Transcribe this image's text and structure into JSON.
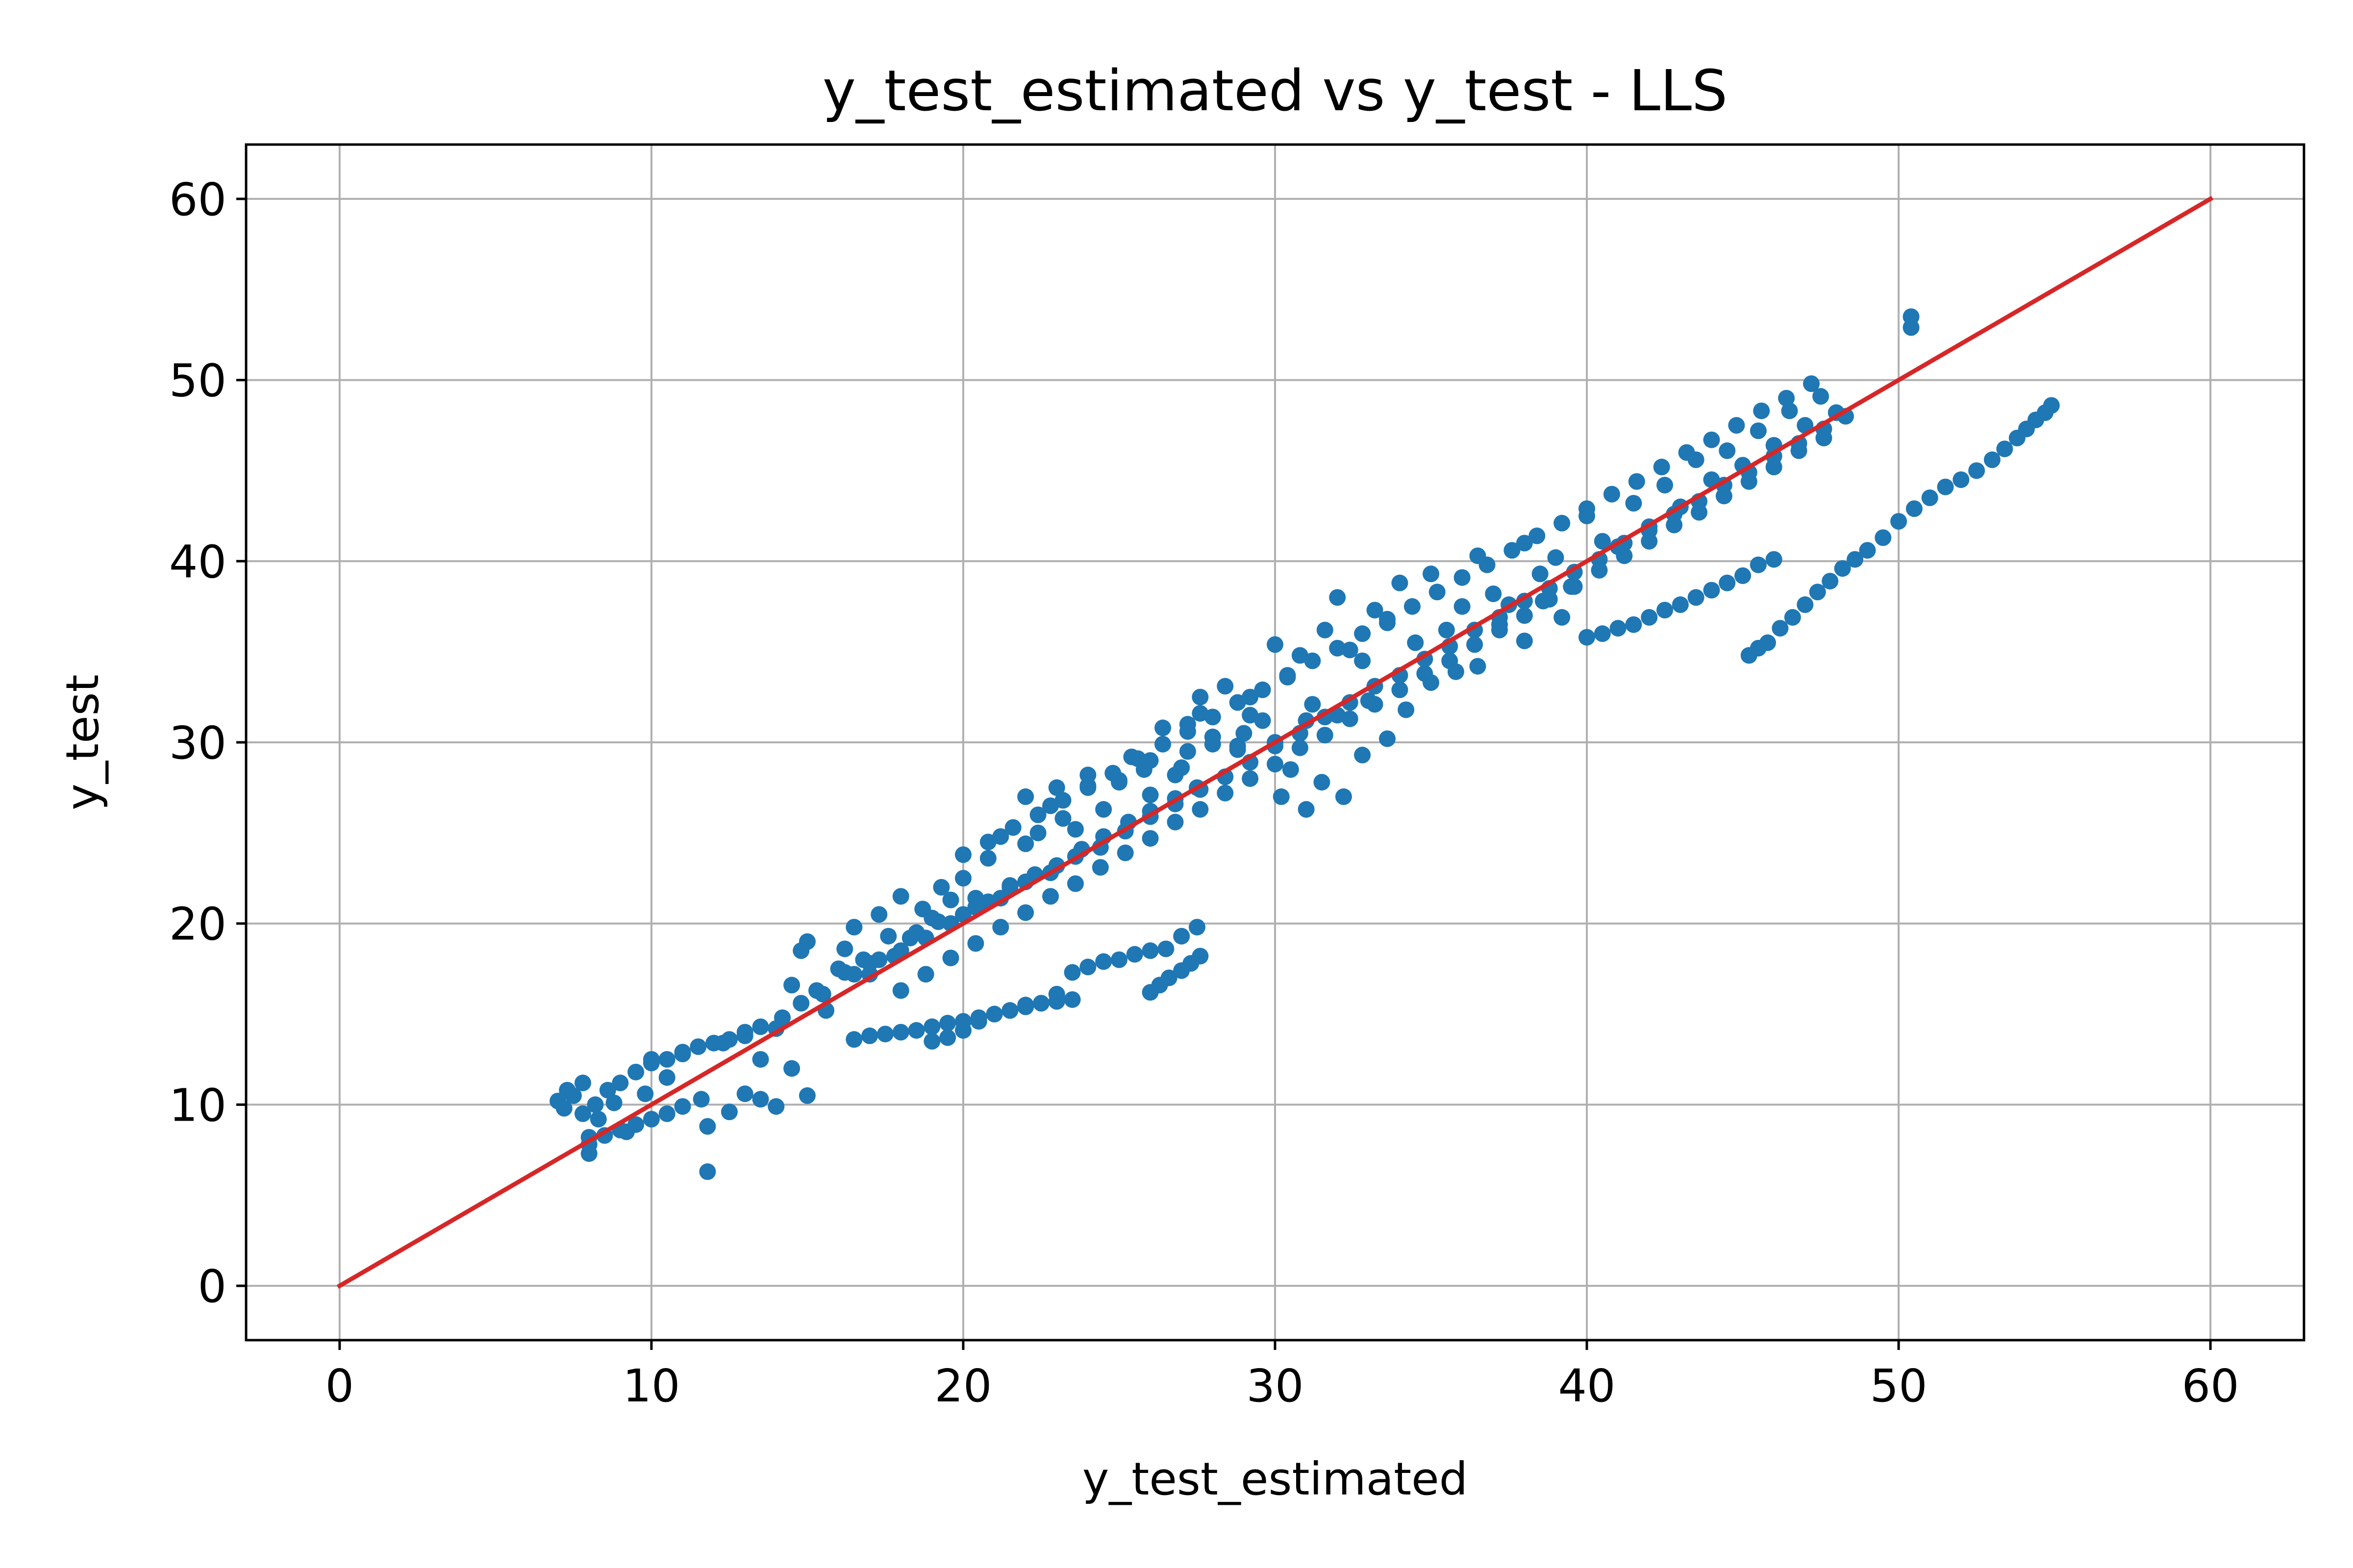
{
  "chart_data": {
    "type": "scatter",
    "title": "y_test_estimated vs y_test - LLS",
    "xlabel": "y_test_estimated",
    "ylabel": "y_test",
    "xlim": [
      -3,
      63
    ],
    "ylim": [
      -3,
      63
    ],
    "xticks": [
      "0",
      "10",
      "20",
      "30",
      "40",
      "50",
      "60"
    ],
    "yticks": [
      "0",
      "10",
      "20",
      "30",
      "40",
      "50",
      "60"
    ],
    "grid": true,
    "colors": {
      "points": "#1f77b4",
      "line": "#d62728",
      "grid": "#b0b0b0"
    },
    "reference_line": {
      "x": [
        0,
        60
      ],
      "y": [
        0,
        60
      ]
    },
    "series": [
      {
        "marker": "dot",
        "x": [
          7.0,
          7.3,
          7.8,
          8.0,
          8.0,
          8.3,
          8.8,
          9.2,
          9.8,
          10.0,
          10.5,
          11.0,
          11.8,
          11.6,
          12.3,
          13.0,
          13.5,
          14.2,
          14.5,
          14.8,
          15.0,
          15.3,
          15.6,
          16.0,
          16.2,
          16.5,
          16.8,
          17.0,
          17.3,
          17.6,
          18.0,
          18.3,
          18.7,
          19.0,
          19.3,
          19.6,
          20.0,
          20.4,
          20.8,
          21.2,
          21.5,
          22.0,
          22.4,
          22.8,
          23.2,
          23.6,
          24.0,
          24.5,
          25.0,
          25.4,
          25.8,
          26.0,
          26.4,
          26.8,
          27.2,
          27.6,
          28.0,
          28.4,
          28.8,
          29.2,
          29.6,
          30.0,
          30.4,
          30.8,
          31.2,
          31.6,
          32.0,
          32.4,
          32.8,
          33.2,
          33.6,
          34.0,
          34.5,
          35.0,
          35.5,
          36.0,
          36.5,
          37.0,
          37.5,
          38.0,
          38.5,
          39.0,
          39.5,
          40.0,
          40.5,
          41.0,
          41.5,
          42.0,
          42.5,
          43.0,
          43.5,
          44.0,
          44.5,
          45.0,
          45.5,
          46.0,
          46.5,
          47.0,
          47.5,
          48.0,
          14.0,
          14.8,
          15.5,
          16.2,
          17.0,
          17.8,
          18.5,
          19.2,
          20.0,
          20.8,
          21.5,
          22.3,
          23.0,
          23.8,
          24.5,
          25.3,
          26.0,
          26.8,
          27.5,
          16.5,
          17.3,
          18.0,
          18.8,
          19.6,
          20.4,
          21.2,
          22.0,
          22.8,
          23.6,
          24.4,
          25.2,
          26.0,
          26.8,
          27.6,
          28.4,
          29.2,
          30.0,
          30.8,
          31.6,
          32.4,
          33.2,
          34.0,
          34.8,
          35.6,
          36.4,
          37.2,
          38.0,
          38.8,
          39.6,
          40.4,
          41.2,
          42.0,
          42.8,
          43.6,
          44.4,
          45.2,
          46.0,
          46.8,
          47.6,
          48.3,
          18.0,
          18.8,
          19.6,
          20.4,
          21.2,
          22.0,
          22.8,
          23.6,
          24.4,
          25.2,
          26.0,
          26.8,
          27.6,
          28.4,
          29.2,
          30.0,
          30.8,
          31.6,
          32.4,
          33.2,
          34.0,
          34.8,
          35.6,
          36.4,
          37.2,
          38.0,
          38.8,
          39.6,
          40.4,
          41.2,
          42.0,
          42.8,
          43.6,
          44.4,
          45.2,
          46.0,
          46.8,
          47.6,
          20.0,
          20.8,
          21.6,
          22.4,
          23.2,
          24.0,
          24.8,
          25.6,
          26.4,
          27.2,
          28.0,
          28.8,
          29.6,
          30.4,
          31.2,
          32.0,
          32.8,
          33.6,
          34.4,
          35.2,
          36.0,
          36.8,
          37.6,
          38.4,
          39.2,
          40.0,
          40.8,
          41.6,
          42.4,
          43.2,
          44.0,
          44.8,
          45.6,
          46.4,
          47.2,
          48.0,
          19.0,
          19.5,
          20.0,
          20.5,
          21.0,
          21.5,
          22.0,
          22.5,
          23.0,
          23.5,
          24.0,
          24.5,
          25.0,
          25.5,
          26.0,
          26.5,
          27.0,
          27.5,
          16.5,
          17.0,
          17.5,
          18.0,
          18.5,
          19.0,
          19.5,
          20.0,
          20.5,
          21.0,
          21.5,
          22.0,
          22.5,
          23.0,
          23.5,
          26.0,
          26.3,
          26.6,
          27.0,
          27.3,
          27.6,
          22.0,
          23.0,
          24.0,
          25.0,
          26.0,
          27.0,
          28.0,
          29.0,
          30.0,
          31.0,
          32.0,
          33.0,
          40.0,
          40.5,
          41.0,
          41.5,
          42.0,
          42.5,
          43.0,
          43.5,
          44.0,
          44.5,
          45.0,
          45.5,
          46.0,
          45.2,
          45.5,
          45.8,
          46.2,
          46.6,
          47.0,
          47.4,
          47.8,
          48.2,
          48.6,
          49.0,
          49.5,
          50.0,
          50.5,
          51.0,
          51.5,
          52.0,
          52.5,
          53.0,
          53.4,
          53.8,
          54.1,
          54.4,
          54.7,
          54.9,
          50.4,
          50.4,
          27.2,
          27.6,
          28.8,
          29.2,
          30.5,
          30.2,
          31.0,
          31.5,
          32.2,
          32.8,
          33.6,
          34.2,
          35.0,
          35.8,
          36.5,
          37.2,
          38.0,
          38.6,
          39.2,
          8.0,
          8.5,
          9.0,
          9.5,
          10.0,
          10.5,
          11.0,
          11.8,
          12.5,
          13.0,
          13.5,
          14.0,
          14.5,
          15.0,
          7.2,
          7.5,
          7.8,
          8.2,
          8.6,
          9.0,
          9.5,
          10.0,
          10.5,
          11.0,
          11.5,
          12.0,
          12.5,
          13.0,
          13.5
        ],
        "y": [
          10.2,
          10.8,
          9.5,
          7.3,
          8.2,
          9.2,
          10.1,
          8.5,
          10.6,
          12.5,
          11.5,
          12.8,
          6.3,
          10.3,
          13.4,
          13.8,
          12.5,
          14.8,
          16.6,
          18.5,
          19.0,
          16.3,
          15.2,
          17.5,
          18.6,
          19.8,
          18.0,
          17.2,
          20.5,
          19.3,
          21.5,
          19.2,
          20.8,
          20.3,
          22.0,
          21.3,
          22.5,
          21.4,
          23.6,
          24.8,
          22.1,
          24.4,
          25.0,
          26.5,
          25.8,
          25.2,
          27.5,
          26.3,
          27.8,
          29.2,
          28.5,
          27.1,
          30.8,
          28.2,
          29.5,
          31.6,
          30.3,
          33.1,
          29.6,
          32.5,
          31.2,
          35.4,
          33.6,
          34.8,
          32.1,
          36.2,
          38.0,
          35.1,
          34.5,
          37.3,
          36.6,
          38.8,
          35.5,
          39.3,
          36.2,
          37.5,
          40.3,
          38.2,
          37.6,
          41.0,
          39.3,
          40.2,
          38.6,
          42.5,
          41.1,
          40.8,
          43.2,
          41.9,
          44.2,
          43.0,
          45.6,
          44.5,
          46.1,
          45.3,
          47.2,
          46.4,
          48.3,
          47.5,
          49.1,
          48.2,
          14.2,
          15.6,
          16.1,
          17.3,
          17.8,
          18.2,
          19.5,
          20.1,
          20.5,
          21.2,
          22.0,
          22.7,
          23.2,
          24.1,
          24.8,
          25.6,
          26.2,
          26.9,
          27.5,
          17.2,
          18.0,
          18.5,
          19.2,
          20.0,
          20.9,
          21.4,
          22.3,
          22.8,
          23.7,
          24.2,
          25.1,
          25.9,
          26.6,
          27.4,
          28.1,
          28.9,
          29.8,
          30.5,
          31.4,
          32.2,
          33.1,
          33.7,
          34.6,
          35.3,
          36.2,
          36.9,
          37.8,
          38.5,
          39.4,
          40.1,
          41.0,
          41.7,
          42.6,
          43.3,
          44.2,
          44.9,
          45.8,
          46.5,
          47.3,
          48.0,
          16.3,
          17.2,
          18.1,
          18.9,
          19.8,
          20.6,
          21.5,
          22.2,
          23.1,
          23.9,
          24.7,
          25.6,
          26.3,
          27.2,
          28.0,
          28.8,
          29.7,
          30.4,
          31.3,
          32.1,
          32.9,
          33.8,
          34.5,
          35.4,
          36.2,
          37.0,
          37.9,
          38.6,
          39.5,
          40.3,
          41.1,
          42.0,
          42.7,
          43.6,
          44.4,
          45.2,
          46.1,
          46.8,
          23.8,
          24.5,
          25.3,
          26.0,
          26.8,
          27.6,
          28.3,
          29.1,
          29.9,
          30.6,
          31.4,
          32.2,
          32.9,
          33.7,
          34.5,
          35.2,
          36.0,
          36.8,
          37.5,
          38.3,
          39.1,
          39.8,
          40.6,
          41.4,
          42.1,
          42.9,
          43.7,
          44.4,
          45.2,
          46.0,
          46.7,
          47.5,
          48.3,
          49.0,
          49.8,
          48.2,
          13.5,
          13.7,
          14.1,
          14.6,
          15.0,
          15.2,
          15.5,
          15.6,
          16.1,
          17.3,
          17.6,
          17.9,
          18.0,
          18.3,
          18.5,
          18.6,
          19.3,
          19.8,
          13.6,
          13.8,
          13.9,
          14.0,
          14.1,
          14.3,
          14.5,
          14.6,
          14.8,
          15.0,
          15.2,
          15.4,
          15.6,
          15.7,
          15.8,
          16.2,
          16.6,
          17.0,
          17.4,
          17.8,
          18.2,
          27.0,
          27.5,
          28.2,
          27.9,
          29.0,
          28.6,
          29.9,
          30.5,
          30.0,
          31.2,
          31.5,
          32.3,
          35.8,
          36.0,
          36.3,
          36.5,
          36.9,
          37.3,
          37.6,
          38.0,
          38.4,
          38.8,
          39.2,
          39.8,
          40.1,
          34.8,
          35.2,
          35.5,
          36.3,
          36.9,
          37.6,
          38.3,
          38.9,
          39.6,
          40.1,
          40.6,
          41.3,
          42.2,
          42.9,
          43.5,
          44.1,
          44.5,
          45.0,
          45.6,
          46.2,
          46.8,
          47.3,
          47.8,
          48.2,
          48.6,
          52.9,
          53.5,
          31.0,
          32.5,
          29.8,
          31.5,
          28.5,
          27.0,
          26.3,
          27.8,
          27.0,
          29.3,
          30.2,
          31.8,
          33.3,
          33.9,
          34.2,
          36.5,
          35.6,
          37.8,
          36.9,
          7.8,
          8.3,
          8.6,
          8.9,
          9.2,
          9.5,
          9.9,
          8.8,
          9.6,
          10.6,
          10.3,
          9.9,
          12.0,
          10.5,
          9.8,
          10.5,
          11.2,
          10.0,
          10.8,
          11.2,
          11.8,
          12.3,
          12.5,
          12.9,
          13.2,
          13.4,
          13.6,
          14.0,
          14.3
        ]
      }
    ]
  }
}
